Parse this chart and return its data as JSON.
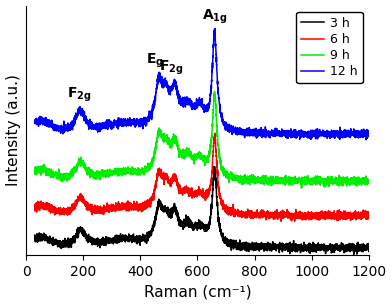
{
  "xlabel": "Raman (cm⁻¹)",
  "ylabel": "Intensity (a.u.)",
  "xlim": [
    0,
    1200
  ],
  "legend_labels": [
    "3 h",
    "6 h",
    "9 h",
    "12 h"
  ],
  "colors": [
    "black",
    "red",
    "#00ee00",
    "blue"
  ],
  "offsets": [
    0.0,
    0.13,
    0.27,
    0.46
  ],
  "noise_scale": 0.008,
  "linewidth": 1.1,
  "annotation_fontsize": 10,
  "tick_fontsize": 10,
  "label_fontsize": 11,
  "legend_fontsize": 9,
  "figsize": [
    3.92,
    3.05
  ],
  "dpi": 100
}
